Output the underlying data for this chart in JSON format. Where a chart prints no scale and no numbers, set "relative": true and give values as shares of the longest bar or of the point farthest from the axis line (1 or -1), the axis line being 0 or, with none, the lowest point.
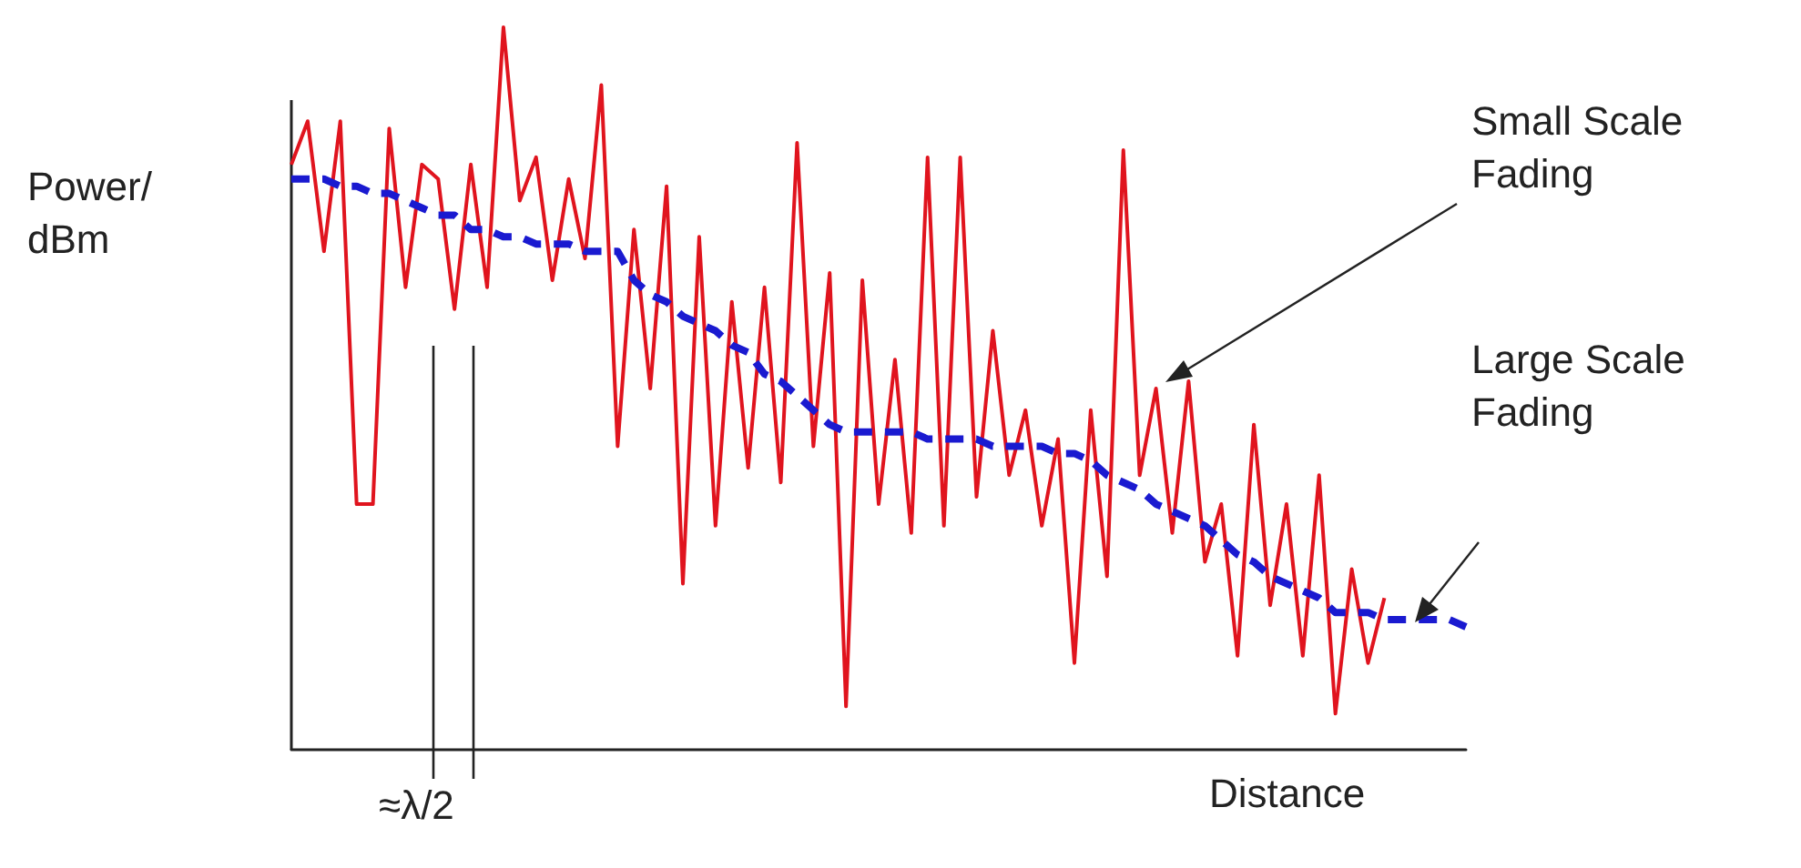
{
  "chart_data": {
    "type": "line",
    "relative": true,
    "ylabel": "Power/dBm",
    "xlabel": "Distance",
    "grid": false,
    "annotations": [
      "Small Scale Fading",
      "Large Scale Fading",
      "≈λ/2"
    ],
    "categories": [
      null,
      null,
      null,
      null,
      null,
      null,
      null,
      null,
      null,
      null,
      null,
      null,
      null,
      null,
      null,
      null,
      null,
      null,
      null,
      null,
      null,
      null,
      null,
      null,
      null,
      null,
      null,
      null,
      null,
      null,
      null,
      null,
      null,
      null,
      null,
      null,
      null,
      null,
      null,
      null,
      null,
      null,
      null,
      null,
      null,
      null,
      null,
      null,
      null,
      null,
      null,
      null,
      null,
      null,
      null,
      null,
      null,
      null,
      null,
      null,
      null,
      null,
      null,
      null,
      null,
      null,
      null,
      null,
      null,
      null,
      null,
      null,
      null
    ],
    "series": [
      {
        "color": "#e0141e",
        "line_style": "solid",
        "values": [
          0.81,
          0.87,
          0.69,
          0.87,
          0.34,
          0.34,
          0.86,
          0.64,
          0.81,
          0.79,
          0.61,
          0.81,
          0.64,
          1.0,
          0.76,
          0.82,
          0.65,
          0.79,
          0.68,
          0.92,
          0.42,
          0.72,
          0.5,
          0.78,
          0.23,
          0.71,
          0.31,
          0.62,
          0.39,
          0.64,
          0.37,
          0.84,
          0.42,
          0.66,
          0.06,
          0.65,
          0.34,
          0.54,
          0.3,
          0.82,
          0.31,
          0.82,
          0.35,
          0.58,
          0.38,
          0.47,
          0.31,
          0.43,
          0.12,
          0.47,
          0.24,
          0.83,
          0.38,
          0.5,
          0.3,
          0.51,
          0.26,
          0.34,
          0.13,
          0.45,
          0.2,
          0.34,
          0.13,
          0.38,
          0.05,
          0.25,
          0.12,
          0.21,
          null,
          null,
          null,
          null,
          null
        ]
      },
      {
        "color": "#1a1ad0",
        "line_style": "dashed",
        "values": [
          0.79,
          0.79,
          0.79,
          0.78,
          0.78,
          0.77,
          0.77,
          0.76,
          0.75,
          0.74,
          0.74,
          0.72,
          0.72,
          0.71,
          0.71,
          0.7,
          0.7,
          0.7,
          0.69,
          0.69,
          0.69,
          0.65,
          0.63,
          0.62,
          0.6,
          0.59,
          0.58,
          0.56,
          0.55,
          0.52,
          0.51,
          0.49,
          0.47,
          0.45,
          0.44,
          0.44,
          0.44,
          0.44,
          0.44,
          0.43,
          0.43,
          0.43,
          0.43,
          0.42,
          0.42,
          0.42,
          0.42,
          0.41,
          0.41,
          0.4,
          0.38,
          0.37,
          0.36,
          0.34,
          0.33,
          0.32,
          0.31,
          0.29,
          0.27,
          0.26,
          0.24,
          0.23,
          0.22,
          0.21,
          0.19,
          0.19,
          0.19,
          0.18,
          0.18,
          0.18,
          0.18,
          0.18,
          0.17
        ]
      }
    ]
  }
}
